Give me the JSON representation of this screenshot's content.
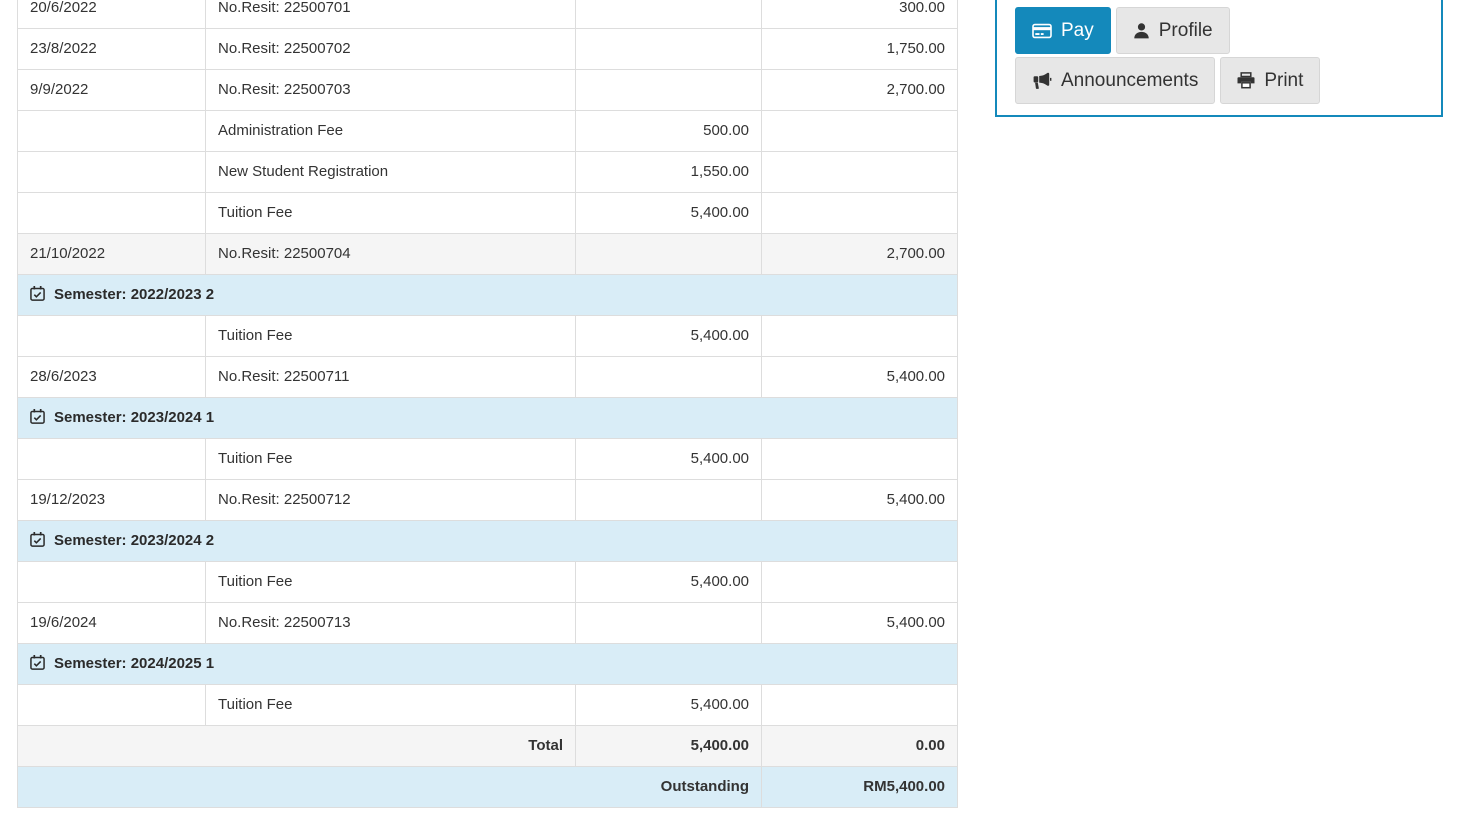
{
  "colors": {
    "accent": "#1489bb",
    "info_row_bg": "#d9edf7",
    "muted_row_bg": "#f5f5f5",
    "table_border": "#dddddd",
    "text": "#333333",
    "button_bg": "#e7e7e7"
  },
  "table": {
    "columns": [
      "date",
      "description",
      "charge",
      "payment"
    ],
    "rows": [
      {
        "type": "entry",
        "date": "20/6/2022",
        "desc": "No.Resit: 22500701",
        "charge": "",
        "payment": "300.00"
      },
      {
        "type": "entry",
        "date": "23/8/2022",
        "desc": "No.Resit: 22500702",
        "charge": "",
        "payment": "1,750.00"
      },
      {
        "type": "entry",
        "date": "9/9/2022",
        "desc": "No.Resit: 22500703",
        "charge": "",
        "payment": "2,700.00"
      },
      {
        "type": "entry",
        "date": "",
        "desc": "Administration Fee",
        "charge": "500.00",
        "payment": ""
      },
      {
        "type": "entry",
        "date": "",
        "desc": "New Student Registration",
        "charge": "1,550.00",
        "payment": ""
      },
      {
        "type": "entry",
        "date": "",
        "desc": "Tuition Fee",
        "charge": "5,400.00",
        "payment": ""
      },
      {
        "type": "entry",
        "date": "21/10/2022",
        "desc": "No.Resit: 22500704",
        "charge": "",
        "payment": "2,700.00",
        "highlighted": true
      },
      {
        "type": "semester",
        "label": "Semester: 2022/2023 2",
        "icon": "calendar-check-icon"
      },
      {
        "type": "entry",
        "date": "",
        "desc": "Tuition Fee",
        "charge": "5,400.00",
        "payment": ""
      },
      {
        "type": "entry",
        "date": "28/6/2023",
        "desc": "No.Resit: 22500711",
        "charge": "",
        "payment": "5,400.00"
      },
      {
        "type": "semester",
        "label": "Semester: 2023/2024 1",
        "icon": "calendar-check-icon"
      },
      {
        "type": "entry",
        "date": "",
        "desc": "Tuition Fee",
        "charge": "5,400.00",
        "payment": ""
      },
      {
        "type": "entry",
        "date": "19/12/2023",
        "desc": "No.Resit: 22500712",
        "charge": "",
        "payment": "5,400.00"
      },
      {
        "type": "semester",
        "label": "Semester: 2023/2024 2",
        "icon": "calendar-check-icon"
      },
      {
        "type": "entry",
        "date": "",
        "desc": "Tuition Fee",
        "charge": "5,400.00",
        "payment": ""
      },
      {
        "type": "entry",
        "date": "19/6/2024",
        "desc": "No.Resit: 22500713",
        "charge": "",
        "payment": "5,400.00"
      },
      {
        "type": "semester",
        "label": "Semester: 2024/2025 1",
        "icon": "calendar-check-icon"
      },
      {
        "type": "entry",
        "date": "",
        "desc": "Tuition Fee",
        "charge": "5,400.00",
        "payment": ""
      },
      {
        "type": "total",
        "label": "Total",
        "charge": "5,400.00",
        "payment": "0.00"
      },
      {
        "type": "outstanding",
        "label": "Outstanding",
        "payment": "RM5,400.00"
      }
    ]
  },
  "panel": {
    "buttons": [
      {
        "id": "pay",
        "label": "Pay",
        "icon": "credit-card-icon",
        "style": "primary"
      },
      {
        "id": "profile",
        "label": "Profile",
        "icon": "user-icon",
        "style": "default"
      },
      {
        "id": "announcements",
        "label": "Announcements",
        "icon": "bullhorn-icon",
        "style": "default"
      },
      {
        "id": "print",
        "label": "Print",
        "icon": "printer-icon",
        "style": "default"
      }
    ]
  }
}
